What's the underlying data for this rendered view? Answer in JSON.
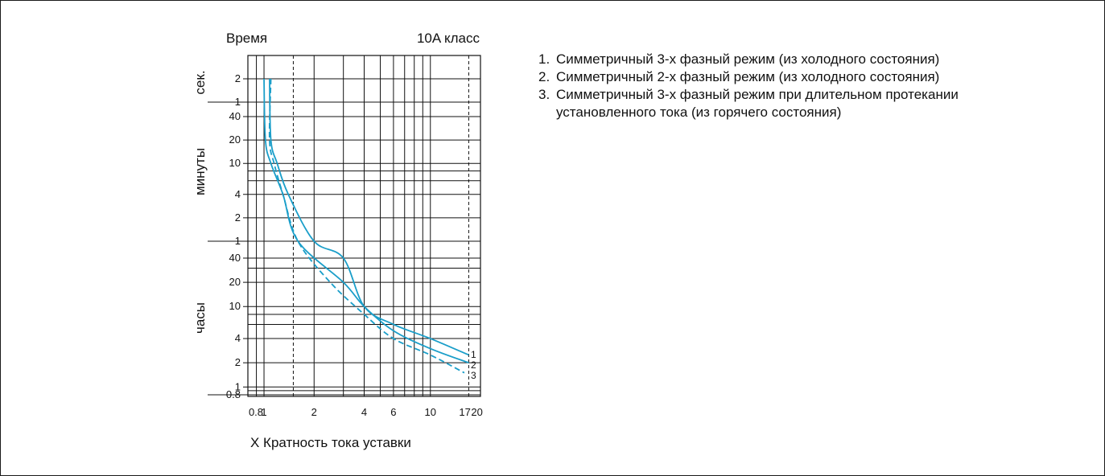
{
  "chart_data": {
    "type": "line",
    "title_left": "Время",
    "title_right": "10A класс",
    "xlabel": "X Кратность тока уставки",
    "x_scale": "log",
    "xlim": [
      0.8,
      20
    ],
    "x_tick_labels": [
      "0.8",
      "1",
      "2",
      "4",
      "6",
      "10",
      "17",
      "20"
    ],
    "x_dashed_gridlines": [
      1.5,
      17
    ],
    "y_bands": [
      {
        "label": "сек.",
        "ticks": [
          "2",
          "1"
        ]
      },
      {
        "label": "минуты",
        "ticks": [
          "40",
          "20",
          "10",
          "4",
          "2",
          "1"
        ]
      },
      {
        "label": "часы",
        "ticks": [
          "40",
          "20",
          "10",
          "4",
          "2",
          "1",
          "0.8"
        ]
      }
    ],
    "series": [
      {
        "name": "1",
        "style": "solid",
        "points": [
          [
            1.08,
            "2 сек."
          ],
          [
            1.1,
            "20 мин."
          ],
          [
            1.2,
            "10 мин."
          ],
          [
            1.4,
            "4 мин."
          ],
          [
            2,
            "1 мин."
          ],
          [
            3,
            "40 ч."
          ],
          [
            4,
            "10 ч."
          ],
          [
            6,
            "6 ч."
          ],
          [
            10,
            "4 ч."
          ],
          [
            17,
            "2.5 ч."
          ]
        ]
      },
      {
        "name": "2",
        "style": "solid",
        "points": [
          [
            1,
            "2 сек."
          ],
          [
            1.02,
            "20 мин."
          ],
          [
            1.1,
            "10 мин."
          ],
          [
            1.3,
            "4 мин."
          ],
          [
            1.6,
            "1 мин."
          ],
          [
            3,
            "20 ч."
          ],
          [
            4,
            "10 ч."
          ],
          [
            6,
            "5 ч."
          ],
          [
            10,
            "3 ч."
          ],
          [
            17,
            "2 ч."
          ]
        ]
      },
      {
        "name": "3",
        "style": "dashed",
        "points": [
          [
            1.1,
            "2 сек."
          ],
          [
            1.08,
            "20 мин."
          ],
          [
            1.15,
            "10 мин."
          ],
          [
            1.3,
            "4 мин."
          ],
          [
            1.6,
            "1 мин."
          ],
          [
            2.5,
            "20 ч."
          ],
          [
            4,
            "8 ч."
          ],
          [
            6,
            "4 ч."
          ],
          [
            10,
            "2.5 ч."
          ],
          [
            16,
            "1.5 ч."
          ]
        ]
      }
    ],
    "curve_color": "#1a9ec9",
    "grid": true
  },
  "legend": [
    {
      "number": "1.",
      "text": "Симметричный 3-х фазный режим (из холодного состояния)"
    },
    {
      "number": "2.",
      "text": "Симметричный 2-х фазный режим (из холодного состояния)"
    },
    {
      "number": "3.",
      "text": "Симметричный 3-х фазный режим при длительном протекании",
      "continuation": "установленного тока (из горячего состояния)"
    }
  ]
}
